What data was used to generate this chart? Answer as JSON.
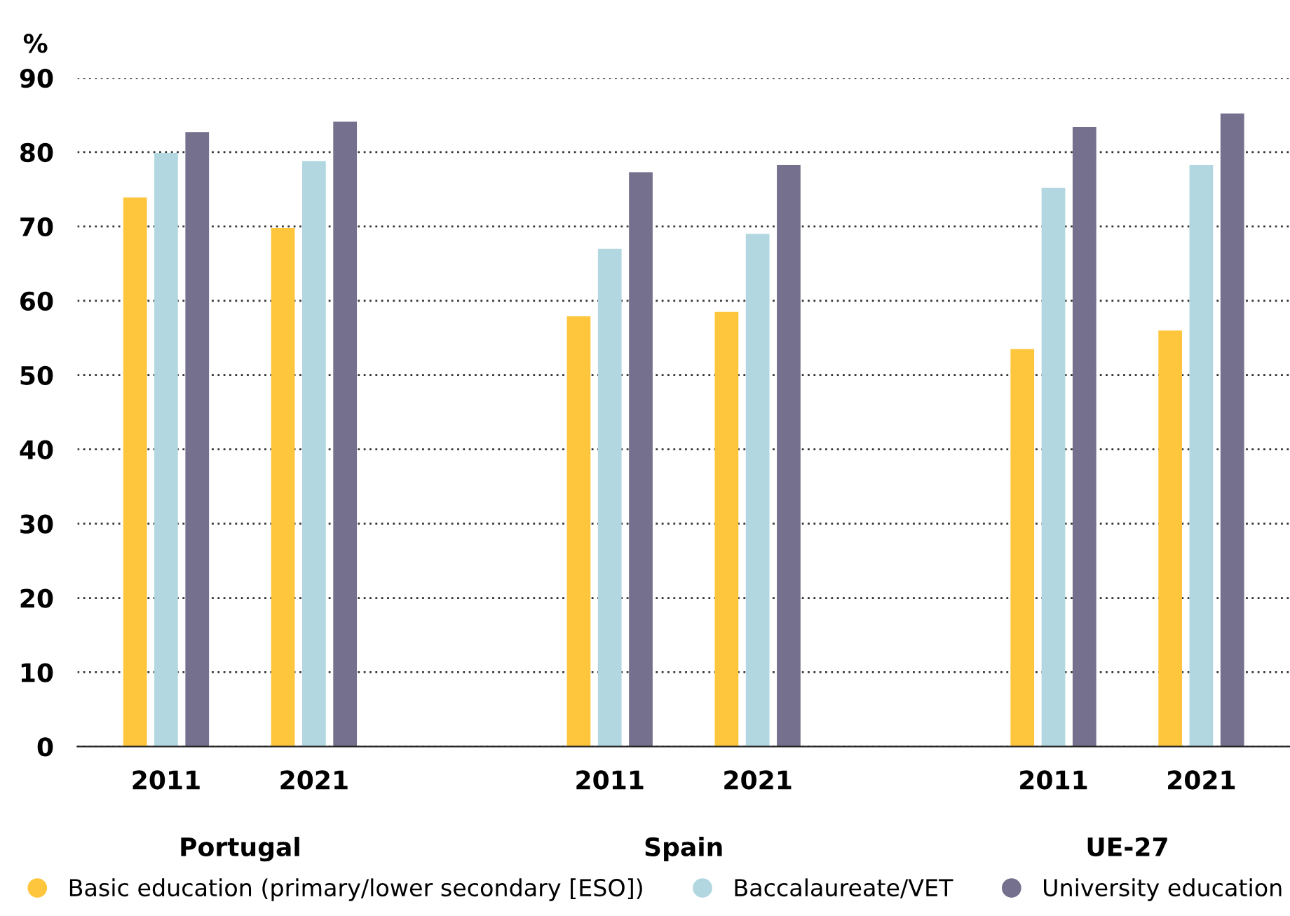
{
  "chart_data": {
    "type": "bar",
    "ylabel": "%",
    "categories": [
      "2011",
      "2021",
      null,
      "2011",
      "2021",
      null,
      "2011",
      "2021"
    ],
    "annotations": [
      "Portugal",
      "Spain",
      "UE-27"
    ],
    "series": [
      {
        "name": "Basic education (primary/lower secondary [ESO])",
        "color": "#fec63d",
        "values": [
          73.9,
          69.8,
          null,
          57.9,
          58.5,
          null,
          53.5,
          56.0
        ]
      },
      {
        "name": "Baccalaureate/VET",
        "color": "#b2d7e1",
        "values": [
          79.9,
          78.8,
          null,
          67.0,
          69.0,
          null,
          75.2,
          78.3
        ]
      },
      {
        "name": "University education",
        "color": "#74708d",
        "values": [
          82.7,
          84.1,
          null,
          77.3,
          78.3,
          null,
          83.4,
          85.2
        ]
      }
    ],
    "ylim": [
      0,
      90
    ],
    "yticks": [
      0,
      10,
      20,
      30,
      40,
      50,
      60,
      70,
      80,
      90
    ],
    "grid": "y",
    "legend": "bottom"
  }
}
